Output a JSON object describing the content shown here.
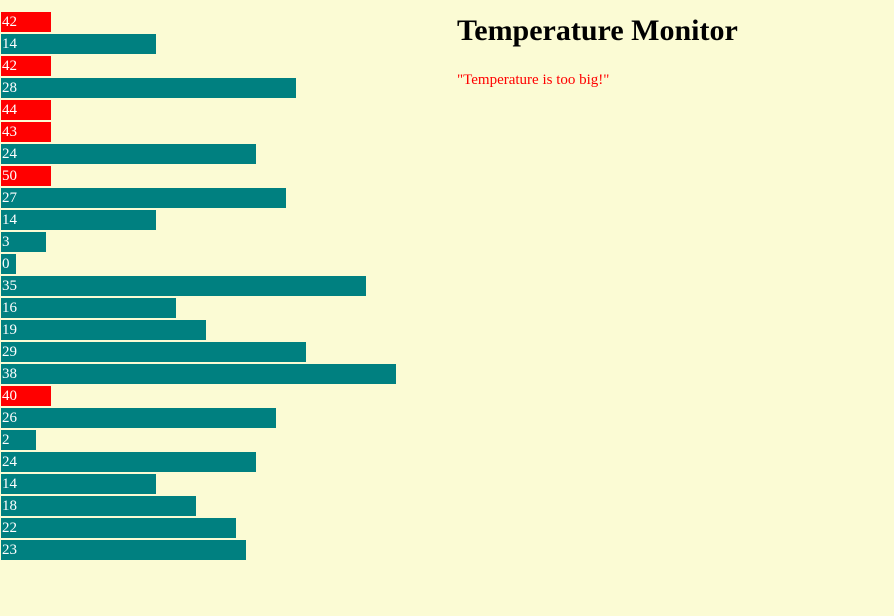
{
  "page": {
    "title": "Temperature Monitor",
    "warning": "\"Temperature is too big!\""
  },
  "colors": {
    "background": "#fbfbd4",
    "normal_bar": "#008080",
    "alert_bar": "#ff0000",
    "warning_text": "#ff0000",
    "bar_label": "#ffffff"
  },
  "chart_data": {
    "type": "bar",
    "orientation": "horizontal",
    "title": "",
    "xlabel": "",
    "ylabel": "",
    "values": [
      42,
      14,
      42,
      28,
      44,
      43,
      24,
      50,
      27,
      14,
      3,
      0,
      35,
      16,
      19,
      29,
      38,
      40,
      26,
      2,
      24,
      14,
      18,
      22,
      23
    ],
    "alert_values_style": "values of 40 and above shown as short red bars",
    "grid": false,
    "legend": "none"
  }
}
